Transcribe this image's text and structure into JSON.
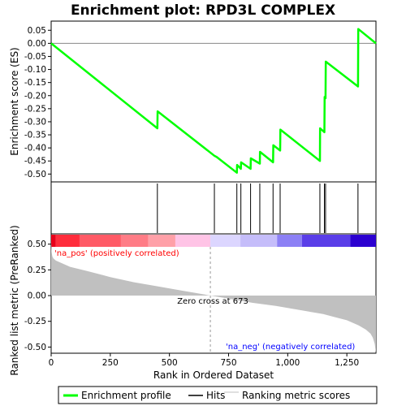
{
  "chart_data": {
    "type": "line",
    "title": "Enrichment plot: RPD3L COMPLEX",
    "top_panel": {
      "ylabel": "Enrichment score (ES)",
      "ylim": [
        -0.53,
        0.085
      ],
      "yticks": [
        0.05,
        0.0,
        -0.05,
        -0.1,
        -0.15,
        -0.2,
        -0.25,
        -0.3,
        -0.35,
        -0.4,
        -0.45,
        -0.5
      ],
      "ytick_labels": [
        "0.05",
        "0.00",
        "-0.05",
        "-0.10",
        "-0.15",
        "-0.20",
        "-0.25",
        "-0.30",
        "-0.35",
        "-0.40",
        "-0.45",
        "-0.50"
      ],
      "series": [
        {
          "name": "Enrichment profile",
          "color": "#00ff00",
          "x": [
            0,
            449,
            450,
            690,
            700,
            785,
            786,
            802,
            803,
            843,
            844,
            882,
            883,
            938,
            939,
            968,
            969,
            1136,
            1137,
            1155,
            1156,
            1160,
            1161,
            1297,
            1298,
            1373
          ],
          "y": [
            0.0,
            -0.325,
            -0.26,
            -0.43,
            -0.435,
            -0.495,
            -0.465,
            -0.48,
            -0.455,
            -0.48,
            -0.44,
            -0.46,
            -0.415,
            -0.455,
            -0.39,
            -0.41,
            -0.33,
            -0.45,
            -0.325,
            -0.34,
            -0.205,
            -0.21,
            -0.07,
            -0.165,
            0.055,
            0.0
          ]
        }
      ]
    },
    "hits": {
      "name": "Hits",
      "positions": [
        449,
        690,
        785,
        802,
        843,
        882,
        938,
        968,
        1136,
        1155,
        1160,
        1297
      ]
    },
    "bottom_panel": {
      "xlabel": "Rank in Ordered Dataset",
      "ylabel": "Ranked list metric (PreRanked)",
      "ylim": [
        -0.56,
        0.6
      ],
      "yticks": [
        0.5,
        0.25,
        0.0,
        -0.25,
        -0.5
      ],
      "ytick_labels": [
        "0.50",
        "0.25",
        "0.00",
        "-0.25",
        "-0.50"
      ],
      "xlim": [
        0,
        1373
      ],
      "xticks": [
        0,
        250,
        500,
        750,
        1000,
        1250
      ],
      "xtick_labels": [
        "0",
        "250",
        "500",
        "750",
        "1,000",
        "1,250"
      ],
      "metric_name": "Ranking metric scores",
      "metric_color": "#c0c0c0",
      "metric_curve": {
        "x": [
          0,
          2,
          5,
          10,
          20,
          40,
          80,
          150,
          250,
          350,
          450,
          550,
          650,
          673,
          750,
          850,
          950,
          1050,
          1150,
          1200,
          1250,
          1300,
          1330,
          1350,
          1360,
          1368,
          1373
        ],
        "y": [
          0.52,
          0.42,
          0.38,
          0.36,
          0.34,
          0.32,
          0.28,
          0.24,
          0.18,
          0.13,
          0.09,
          0.05,
          0.01,
          0.0,
          -0.03,
          -0.07,
          -0.1,
          -0.14,
          -0.18,
          -0.21,
          -0.24,
          -0.29,
          -0.33,
          -0.37,
          -0.41,
          -0.47,
          -0.56
        ]
      },
      "zero_cross_label": "Zero cross at 673",
      "zero_cross": 673,
      "pos_label": "'na_pos' (positively correlated)",
      "neg_label": "'na_neg' (negatively correlated)",
      "pos_label_color": "#ff0000",
      "neg_label_color": "#0000ff"
    },
    "colorbar": {
      "segments": [
        {
          "from": 0,
          "to": 20,
          "color": "#e8001a"
        },
        {
          "from": 20,
          "to": 120,
          "color": "#ff2d3c"
        },
        {
          "from": 120,
          "to": 295,
          "color": "#ff5a66"
        },
        {
          "from": 295,
          "to": 410,
          "color": "#ff7c86"
        },
        {
          "from": 410,
          "to": 525,
          "color": "#ffa0a8"
        },
        {
          "from": 525,
          "to": 673,
          "color": "#ffc4e6"
        },
        {
          "from": 673,
          "to": 800,
          "color": "#dcd6ff"
        },
        {
          "from": 800,
          "to": 955,
          "color": "#c5bdfa"
        },
        {
          "from": 955,
          "to": 1060,
          "color": "#8c80f5"
        },
        {
          "from": 1060,
          "to": 1265,
          "color": "#5a3ee8"
        },
        {
          "from": 1265,
          "to": 1373,
          "color": "#2c00d0"
        }
      ]
    },
    "legend": [
      {
        "label": "Enrichment profile",
        "color": "#00ff00"
      },
      {
        "label": "Hits",
        "color": "#000000"
      },
      {
        "label": "Ranking metric scores",
        "color": "#c0c0c0"
      }
    ]
  }
}
